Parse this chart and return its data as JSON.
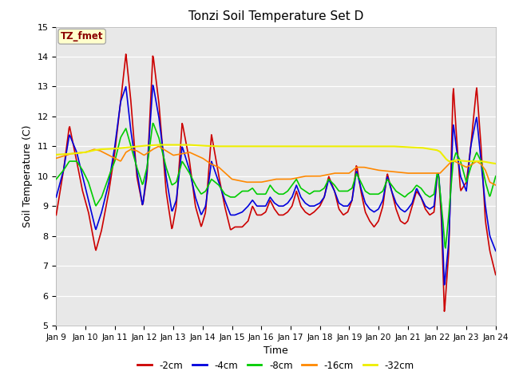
{
  "title": "Tonzi Soil Temperature Set D",
  "xlabel": "Time",
  "ylabel": "Soil Temperature (C)",
  "ylim": [
    5.0,
    15.0
  ],
  "yticks": [
    5.0,
    6.0,
    7.0,
    8.0,
    9.0,
    10.0,
    11.0,
    12.0,
    13.0,
    14.0,
    15.0
  ],
  "plot_bg_color": "#e8e8e8",
  "legend_label": "TZ_fmet",
  "legend_bg": "#ffffcc",
  "legend_border": "#aaaaaa",
  "series_colors": {
    "-2cm": "#cc0000",
    "-4cm": "#0000dd",
    "-8cm": "#00cc00",
    "-16cm": "#ff8800",
    "-32cm": "#eeee00"
  },
  "series_lw": {
    "-2cm": 1.2,
    "-4cm": 1.2,
    "-8cm": 1.2,
    "-16cm": 1.2,
    "-32cm": 1.5
  },
  "xtick_labels": [
    "Jan 9",
    "Jan 10",
    "Jan 11",
    "Jan 12",
    "Jan 13",
    "Jan 14",
    "Jan 15",
    "Jan 16",
    "Jan 17",
    "Jan 18",
    "Jan 19",
    "Jan 20",
    "Jan 21",
    "Jan 22",
    "Jan 23",
    "Jan 24"
  ],
  "figsize": [
    6.4,
    4.8
  ],
  "dpi": 100,
  "title_fontsize": 11,
  "label_fontsize": 9,
  "tick_fontsize": 7.5
}
